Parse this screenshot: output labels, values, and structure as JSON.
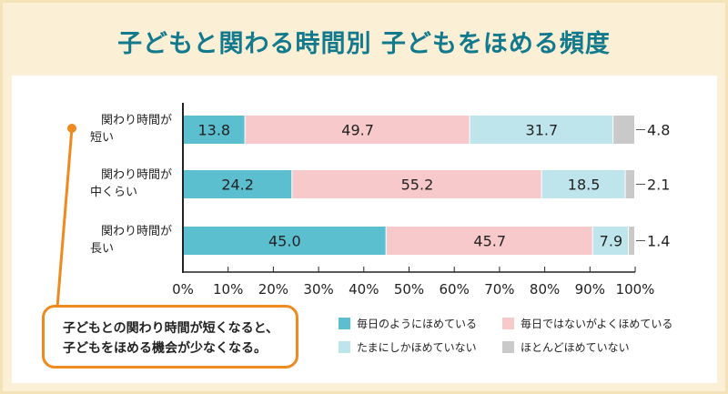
{
  "title": "子どもと関わる時間別 子どもをほめる頻度",
  "callout": {
    "line1": "子どもとの関わり時間が短くなると、",
    "line2": "子どもをほめる機会が少なくなる。"
  },
  "colors": {
    "accent_title": "#127a8c",
    "callout_orange": "#ee8a1e",
    "background": "#fbf0d6"
  },
  "chart_data": {
    "type": "bar",
    "orientation": "horizontal",
    "stacked": true,
    "percent": true,
    "title": "子どもと関わる時間別 子どもをほめる頻度",
    "categories": [
      [
        "関わり時間が",
        "短い"
      ],
      [
        "関わり時間が",
        "中くらい"
      ],
      [
        "関わり時間が",
        "長い"
      ]
    ],
    "series": [
      {
        "name": "毎日のようにほめている",
        "color": "#5bbfd0",
        "values": [
          13.8,
          24.2,
          45.0
        ]
      },
      {
        "name": "毎日ではないがよくほめている",
        "color": "#f8c9cb",
        "values": [
          49.7,
          55.2,
          45.7
        ]
      },
      {
        "name": "たまにしかほめていない",
        "color": "#bfe5ec",
        "values": [
          31.7,
          18.5,
          7.9
        ]
      },
      {
        "name": "ほとんどほめていない",
        "color": "#c9c9c9",
        "values": [
          4.8,
          2.1,
          1.4
        ]
      }
    ],
    "value_labels": [
      [
        "13.8",
        "49.7",
        "31.7",
        "4.8"
      ],
      [
        "24.2",
        "55.2",
        "18.5",
        "2.1"
      ],
      [
        "45.0",
        "45.7",
        "7.9",
        "1.4"
      ]
    ],
    "xlim": [
      0,
      100
    ],
    "xticks": [
      "0%",
      "10%",
      "20%",
      "30%",
      "40%",
      "50%",
      "60%",
      "70%",
      "80%",
      "90%",
      "100%"
    ],
    "legend_position": "bottom-right",
    "grid": false
  }
}
